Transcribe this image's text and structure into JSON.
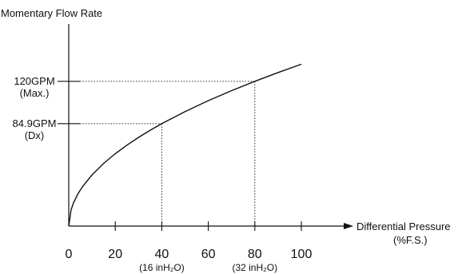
{
  "chart_data": {
    "type": "line",
    "title": "",
    "ylabel": "Momentary Flow Rate",
    "xlabel": [
      "Differential Pressure",
      "(%F.S.)"
    ],
    "xlim": [
      0,
      100
    ],
    "ylim": [
      0,
      155
    ],
    "x_ticks": [
      0,
      20,
      40,
      60,
      80,
      100
    ],
    "x_tick_sublabels": {
      "40": "(16 inH₂O)",
      "80": "(32 inH₂O)"
    },
    "y_marks": [
      {
        "value": 84.9,
        "label": "84.9GPM",
        "sublabel": "(Dx)",
        "at_x": 40
      },
      {
        "value": 120,
        "label": "120GPM",
        "sublabel": "(Max.)",
        "at_x": 80
      }
    ],
    "series": [
      {
        "x": [
          0,
          1,
          2,
          4,
          6,
          10,
          15,
          20,
          25,
          30,
          35,
          40,
          50,
          60,
          70,
          80,
          90,
          100
        ],
        "y": [
          0,
          13.4,
          19,
          26.8,
          32.9,
          42.4,
          52,
          60,
          67.1,
          73.5,
          79.4,
          84.9,
          94.9,
          104,
          112.3,
          120,
          127.3,
          134.2
        ]
      }
    ],
    "grid": false,
    "legend": "none"
  }
}
